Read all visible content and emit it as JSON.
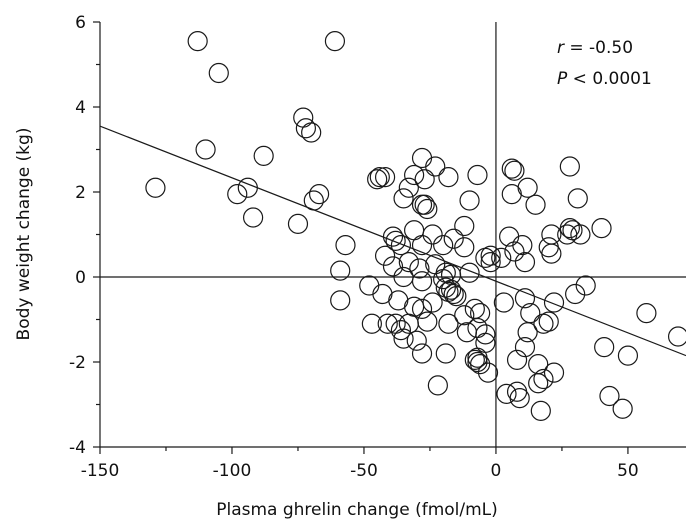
{
  "chart_data": {
    "type": "scatter",
    "title": "",
    "xlabel": "Plasma ghrelin change (fmol/mL)",
    "ylabel": "Body weight change (kg)",
    "xlim": [
      -150,
      72
    ],
    "ylim": [
      -4,
      6
    ],
    "x_ticks": [
      -150,
      -100,
      -50,
      0,
      50
    ],
    "x_tick_labels": [
      "-150",
      "-100",
      "-50",
      "0",
      "50"
    ],
    "y_ticks": [
      -4,
      -2,
      0,
      2,
      4,
      6
    ],
    "y_tick_labels": [
      "-4",
      "-2",
      "0",
      "2",
      "4",
      "6"
    ],
    "grid": false,
    "reference_lines": {
      "x": 0,
      "y": 0
    },
    "annotations": {
      "r_symbol": "r",
      "r_value": " = -0.50",
      "p_symbol": "P",
      "p_value": " < 0.0001"
    },
    "regression_line": {
      "x": [
        -150,
        72
      ],
      "y": [
        3.55,
        -1.85
      ]
    },
    "points": [
      [
        -113,
        5.55
      ],
      [
        -61,
        5.55
      ],
      [
        -105,
        4.8
      ],
      [
        -73,
        3.75
      ],
      [
        -72,
        3.5
      ],
      [
        -70,
        3.4
      ],
      [
        -110,
        3.0
      ],
      [
        -88,
        2.85
      ],
      [
        -129,
        2.1
      ],
      [
        -94,
        2.1
      ],
      [
        -98,
        1.95
      ],
      [
        -67,
        1.95
      ],
      [
        -69,
        1.8
      ],
      [
        -92,
        1.4
      ],
      [
        -75,
        1.25
      ],
      [
        -57,
        0.75
      ],
      [
        -59,
        0.15
      ],
      [
        -59,
        -0.55
      ],
      [
        -45,
        2.3
      ],
      [
        -44,
        2.35
      ],
      [
        -42,
        2.35
      ],
      [
        -33,
        2.1
      ],
      [
        -31,
        2.4
      ],
      [
        -28,
        2.8
      ],
      [
        -23,
        2.6
      ],
      [
        -27,
        2.3
      ],
      [
        -18,
        2.35
      ],
      [
        -7,
        2.4
      ],
      [
        6,
        2.55
      ],
      [
        7,
        2.5
      ],
      [
        12,
        2.1
      ],
      [
        28,
        2.6
      ],
      [
        -35,
        1.85
      ],
      [
        -28,
        1.7
      ],
      [
        -26,
        1.6
      ],
      [
        -27,
        1.7
      ],
      [
        -10,
        1.8
      ],
      [
        6,
        1.95
      ],
      [
        15,
        1.7
      ],
      [
        31,
        1.85
      ],
      [
        -39,
        0.95
      ],
      [
        -38,
        0.85
      ],
      [
        -36,
        0.75
      ],
      [
        -31,
        1.1
      ],
      [
        -24,
        1.0
      ],
      [
        -12,
        1.2
      ],
      [
        -16,
        0.9
      ],
      [
        5,
        0.95
      ],
      [
        21,
        1.0
      ],
      [
        27,
        1.0
      ],
      [
        28,
        1.15
      ],
      [
        29,
        1.1
      ],
      [
        32,
        1.0
      ],
      [
        40,
        1.15
      ],
      [
        -42,
        0.5
      ],
      [
        -39,
        0.25
      ],
      [
        -33,
        0.35
      ],
      [
        -28,
        0.75
      ],
      [
        -20,
        0.75
      ],
      [
        -23,
        0.3
      ],
      [
        -29,
        0.2
      ],
      [
        -12,
        0.7
      ],
      [
        -4,
        0.45
      ],
      [
        -2,
        0.5
      ],
      [
        2,
        0.45
      ],
      [
        7,
        0.6
      ],
      [
        10,
        0.75
      ],
      [
        20,
        0.7
      ],
      [
        21,
        0.55
      ],
      [
        -35,
        0.0
      ],
      [
        -28,
        -0.1
      ],
      [
        -20,
        -0.05
      ],
      [
        -19,
        0.1
      ],
      [
        -17,
        0.05
      ],
      [
        -10,
        0.1
      ],
      [
        -2,
        0.35
      ],
      [
        -19,
        -0.25
      ],
      [
        -17,
        -0.3
      ],
      [
        -16,
        -0.4
      ],
      [
        -18,
        -0.35
      ],
      [
        -15,
        -0.45
      ],
      [
        11,
        0.35
      ],
      [
        -48,
        -0.2
      ],
      [
        -43,
        -0.4
      ],
      [
        -37,
        -0.55
      ],
      [
        -31,
        -0.7
      ],
      [
        -28,
        -0.75
      ],
      [
        -24,
        -0.6
      ],
      [
        -12,
        -0.9
      ],
      [
        -8,
        -0.75
      ],
      [
        -6,
        -0.85
      ],
      [
        3,
        -0.6
      ],
      [
        11,
        -0.5
      ],
      [
        22,
        -0.6
      ],
      [
        30,
        -0.4
      ],
      [
        34,
        -0.2
      ],
      [
        -47,
        -1.1
      ],
      [
        -41,
        -1.1
      ],
      [
        -38,
        -1.1
      ],
      [
        -36,
        -1.25
      ],
      [
        -33,
        -1.1
      ],
      [
        -26,
        -1.05
      ],
      [
        -18,
        -1.1
      ],
      [
        -11,
        -1.3
      ],
      [
        -7,
        -1.2
      ],
      [
        -4,
        -1.55
      ],
      [
        -4,
        -1.35
      ],
      [
        13,
        -0.85
      ],
      [
        18,
        -1.1
      ],
      [
        20,
        -1.05
      ],
      [
        -35,
        -1.45
      ],
      [
        -30,
        -1.5
      ],
      [
        -8,
        -1.95
      ],
      [
        -7,
        -2.0
      ],
      [
        -6,
        -2.05
      ],
      [
        -7,
        -1.9
      ],
      [
        -3,
        -2.25
      ],
      [
        8,
        -1.95
      ],
      [
        11,
        -1.65
      ],
      [
        12,
        -1.3
      ],
      [
        16,
        -2.05
      ],
      [
        -19,
        -1.8
      ],
      [
        -28,
        -1.8
      ],
      [
        -22,
        -2.55
      ],
      [
        4,
        -2.75
      ],
      [
        9,
        -2.85
      ],
      [
        8,
        -2.7
      ],
      [
        16,
        -2.5
      ],
      [
        17,
        -3.15
      ],
      [
        18,
        -2.4
      ],
      [
        22,
        -2.25
      ],
      [
        41,
        -1.65
      ],
      [
        50,
        -1.85
      ],
      [
        57,
        -0.85
      ],
      [
        69,
        -1.4
      ],
      [
        43,
        -2.8
      ],
      [
        48,
        -3.1
      ]
    ]
  }
}
